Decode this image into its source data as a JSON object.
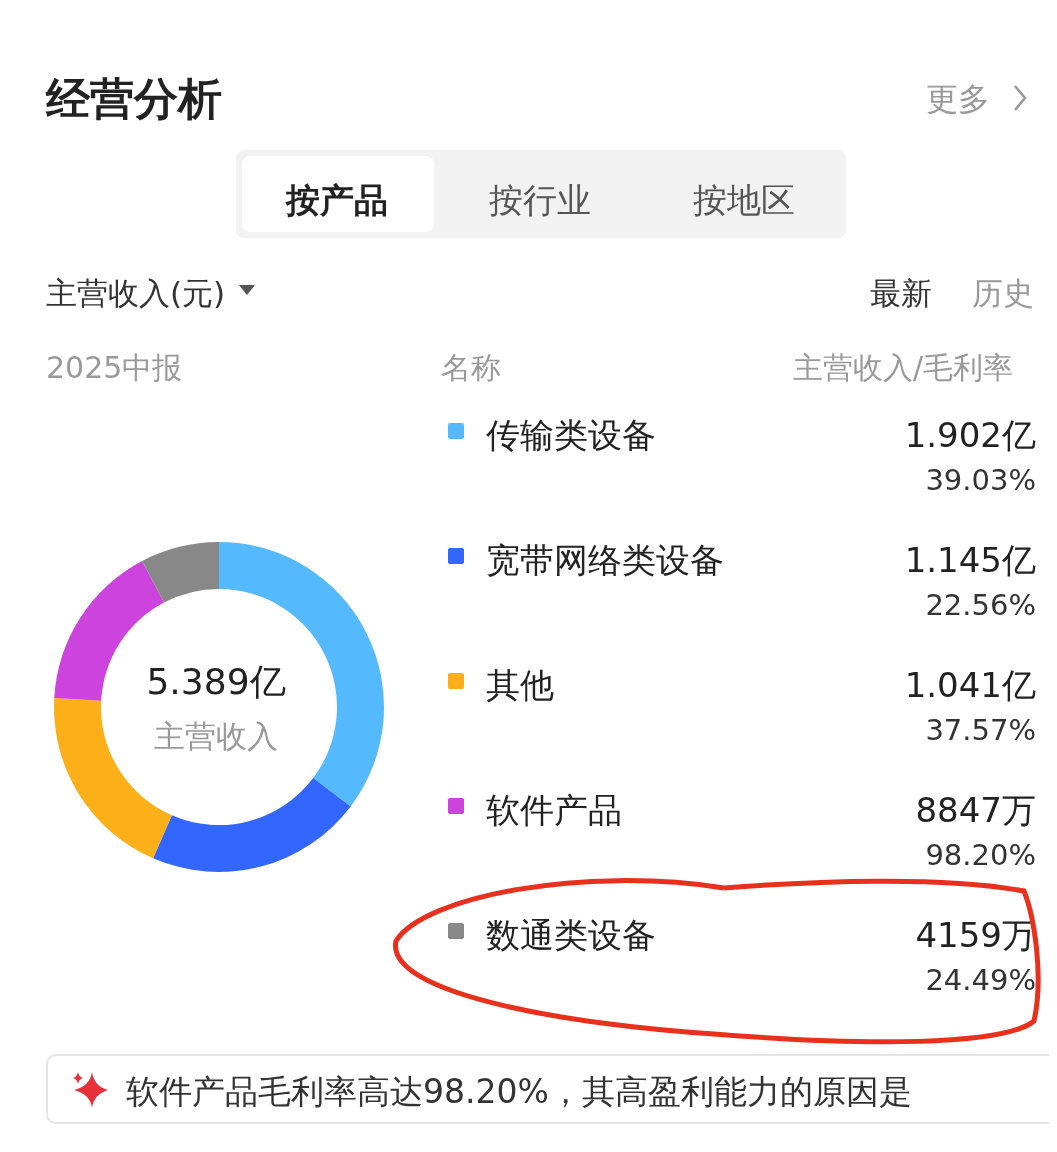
{
  "chart_data": {
    "type": "donut",
    "title": "经营分析",
    "categories": [
      "传输类设备",
      "宽带网络类设备",
      "其他",
      "软件产品",
      "数通类设备"
    ],
    "values": [
      35.29,
      21.25,
      19.32,
      16.42,
      7.72
    ],
    "colors": [
      "#55b9fd",
      "#3366ff",
      "#fbb01a",
      "#cc44dd",
      "#888888"
    ],
    "legend": "right",
    "annotations": [
      "更多",
      "按产品",
      "按行业",
      "按地区",
      "主营收入(元)",
      "最新",
      "历史",
      "2025中报",
      "名称",
      "主营收入/毛利率",
      "5.389亿",
      "主营收入",
      "39.03%",
      "22.56%",
      "37.57%",
      "98.20%",
      "24.49%",
      "软件产品毛利率高达98.20%，其高盈利能力的原因是",
      "1.902亿",
      "1.145亿",
      "1.041亿",
      "8847万",
      "4159万"
    ]
  }
}
